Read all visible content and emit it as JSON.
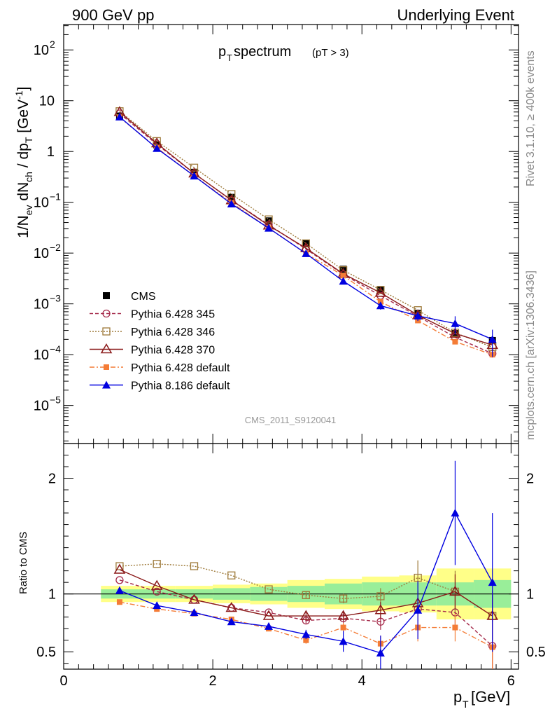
{
  "header": {
    "left": "900 GeV pp",
    "right": "Underlying Event"
  },
  "side": {
    "rivet": "Rivet 3.1.10, ≥ 400k events",
    "mcplots": "mcplots.cern.ch [arXiv:1306.3436]"
  },
  "title": {
    "main_p": "p",
    "main_sub": "T",
    "main_rest": " spectrum",
    "cut": "(pT >  3)"
  },
  "analysis": "CMS_2011_S9120041",
  "ylabel_top": {
    "a": "1/N",
    "a_sub": "ev",
    "b": " dN",
    "b_sub": "ch",
    "c": " / dp",
    "c_sub": "T",
    "d": " [GeV",
    "d_sup": "-1",
    "e": "]"
  },
  "ylabel_bottom": "Ratio to CMS",
  "xlabel": {
    "p": "p",
    "sub": "T",
    "rest": " [GeV]"
  },
  "top_ticks": [
    {
      "v": 2,
      "base": "10",
      "exp": "2"
    },
    {
      "v": 1,
      "base": "10",
      "exp": ""
    },
    {
      "v": 0,
      "base": "1",
      "exp": ""
    },
    {
      "v": -1,
      "base": "10",
      "exp": "−1"
    },
    {
      "v": -2,
      "base": "10",
      "exp": "−2"
    },
    {
      "v": -3,
      "base": "10",
      "exp": "−3"
    },
    {
      "v": -4,
      "base": "10",
      "exp": "−4"
    },
    {
      "v": -5,
      "base": "10",
      "exp": "−5"
    }
  ],
  "bottom_ticks": [
    "2",
    "1",
    "0.5"
  ],
  "x_ticks": [
    "0",
    "2",
    "4",
    "6"
  ],
  "chart_data": {
    "type": "line",
    "xlim": [
      0,
      6.1
    ],
    "ylim_top_log10": [
      -5.75,
      2.5
    ],
    "ylim_ratio": [
      0.35,
      2.3
    ],
    "x": [
      0.75,
      1.25,
      1.75,
      2.25,
      2.75,
      3.25,
      3.75,
      4.25,
      4.75,
      5.25,
      5.75
    ],
    "band_edges": [
      0.5,
      1.0,
      1.5,
      2.0,
      2.5,
      3.0,
      3.5,
      4.0,
      4.5,
      5.0,
      5.5,
      6.0
    ],
    "band_stat": [
      0.04,
      0.04,
      0.04,
      0.05,
      0.06,
      0.07,
      0.09,
      0.1,
      0.1,
      0.1,
      0.12
    ],
    "band_total": [
      0.07,
      0.07,
      0.07,
      0.08,
      0.09,
      0.12,
      0.13,
      0.15,
      0.16,
      0.22,
      0.22
    ],
    "series": [
      {
        "name": "CMS",
        "color": "#000000",
        "marker": "square",
        "values": [
          5.0,
          1.35,
          0.39,
          0.125,
          0.043,
          0.0155,
          0.0048,
          0.0019,
          0.00065,
          0.00026,
          0.00019
        ],
        "ratio": [
          1,
          1,
          1,
          1,
          1,
          1,
          1,
          1,
          1,
          1,
          1
        ]
      },
      {
        "name": "Pythia 6.428 345",
        "color": "#a52a4a",
        "marker": "circle-open",
        "dash": "5,3",
        "values": [
          5.6,
          1.38,
          0.37,
          0.11,
          0.036,
          0.012,
          0.0038,
          0.00145,
          0.00057,
          0.00022,
          0.000105
        ],
        "ratio": [
          1.12,
          1.02,
          0.95,
          0.88,
          0.84,
          0.77,
          0.79,
          0.76,
          0.87,
          0.84,
          0.55
        ],
        "ratio_err": [
          0.01,
          0.01,
          0.01,
          0.02,
          0.02,
          0.03,
          0.04,
          0.07,
          0.1,
          0.15,
          0.22
        ]
      },
      {
        "name": "Pythia 6.428 346",
        "color": "#9e7a3a",
        "marker": "square-open",
        "dash": "2,2",
        "values": [
          6.2,
          1.6,
          0.48,
          0.145,
          0.046,
          0.0155,
          0.0046,
          0.00188,
          0.00075,
          0.00027,
          0.00014
        ],
        "ratio": [
          1.24,
          1.26,
          1.24,
          1.16,
          1.04,
          0.99,
          0.96,
          0.98,
          1.14,
          1.02,
          0.81
        ],
        "ratio_err": [
          0.01,
          0.01,
          0.01,
          0.02,
          0.02,
          0.03,
          0.04,
          0.07,
          0.15,
          0.18,
          0.22
        ]
      },
      {
        "name": "Pythia 6.428 370",
        "color": "#8b1a1a",
        "marker": "triangle-open",
        "dash": "",
        "values": [
          6.0,
          1.45,
          0.37,
          0.11,
          0.035,
          0.0125,
          0.0039,
          0.00165,
          0.0006,
          0.00026,
          0.000155
        ],
        "ratio": [
          1.21,
          1.07,
          0.95,
          0.88,
          0.81,
          0.81,
          0.81,
          0.86,
          0.92,
          1.02,
          0.81
        ],
        "ratio_err": [
          0.01,
          0.01,
          0.01,
          0.02,
          0.02,
          0.03,
          0.04,
          0.07,
          0.1,
          0.15,
          0.2
        ]
      },
      {
        "name": "Pythia 6.428 default",
        "color": "#f47c36",
        "marker": "square-filled",
        "dash": "7,3,2,3",
        "values": [
          4.7,
          1.18,
          0.33,
          0.098,
          0.031,
          0.0098,
          0.0036,
          0.0011,
          0.00047,
          0.00018,
          0.0001
        ],
        "ratio": [
          0.93,
          0.87,
          0.83,
          0.78,
          0.7,
          0.6,
          0.71,
          0.57,
          0.71,
          0.71,
          0.54
        ],
        "ratio_err": [
          0.01,
          0.01,
          0.01,
          0.02,
          0.02,
          0.03,
          0.04,
          0.07,
          0.12,
          0.12,
          0.22
        ]
      },
      {
        "name": "Pythia 8.186 default",
        "color": "#0000e0",
        "marker": "triangle-filled",
        "dash": "",
        "values": [
          4.8,
          1.15,
          0.33,
          0.093,
          0.031,
          0.0098,
          0.0028,
          0.00092,
          0.00058,
          0.00041,
          0.0002
        ],
        "ratio": [
          1.03,
          0.9,
          0.84,
          0.76,
          0.72,
          0.65,
          0.59,
          0.49,
          0.86,
          1.7,
          1.1
        ],
        "ratio_err": [
          0.01,
          0.01,
          0.02,
          0.02,
          0.03,
          0.04,
          0.09,
          0.15,
          0.25,
          0.45,
          0.6
        ],
        "top_err": [
          0.1,
          0.02,
          0.01,
          0.003,
          0.001,
          0.0004,
          0.00025,
          0.00015,
          0.00012,
          0.00016,
          0.00011
        ]
      }
    ]
  }
}
